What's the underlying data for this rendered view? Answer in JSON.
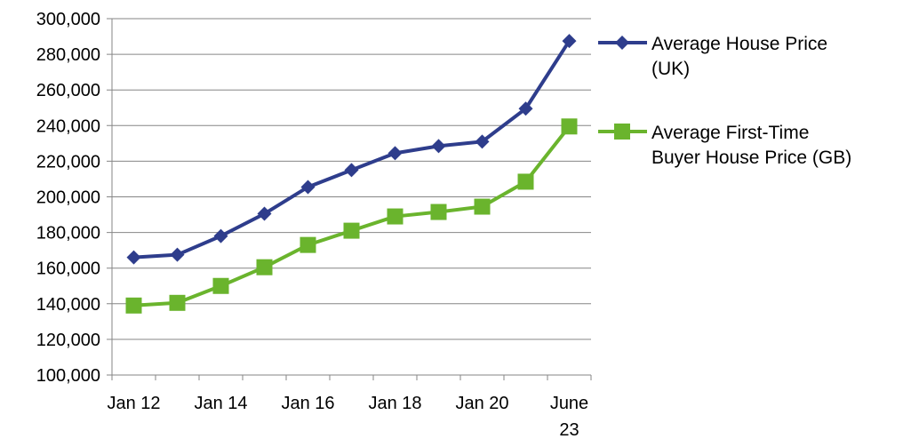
{
  "chart_data": {
    "type": "line",
    "x_tick_labels": [
      "Jan 12",
      "Jan 14",
      "Jan 16",
      "Jan 18",
      "Jan 20",
      "June 23"
    ],
    "ylim": [
      100000,
      300000
    ],
    "y_ticks": [
      100000,
      120000,
      140000,
      160000,
      180000,
      200000,
      220000,
      240000,
      260000,
      280000,
      300000
    ],
    "y_tick_labels": [
      "100,000",
      "120,000",
      "140,000",
      "160,000",
      "180,000",
      "200,000",
      "220,000",
      "240,000",
      "260,000",
      "280,000",
      "300,000"
    ],
    "grid": true,
    "legend_position": "right",
    "series": [
      {
        "name": "Average House Price (UK)",
        "legend_lines": [
          "Average House Price",
          "(UK)"
        ],
        "color": "#2E3D8C",
        "marker": "diamond",
        "values": [
          166000,
          167500,
          178000,
          190500,
          205500,
          215000,
          224500,
          228500,
          231000,
          249500,
          287500
        ]
      },
      {
        "name": "Average First-Time Buyer House Price (GB)",
        "legend_lines": [
          "Average First-Time",
          "Buyer House Price (GB)"
        ],
        "color": "#6AB42D",
        "marker": "square",
        "values": [
          139000,
          140500,
          150000,
          160500,
          173000,
          181000,
          189000,
          191500,
          194500,
          208500,
          239500
        ]
      }
    ]
  }
}
